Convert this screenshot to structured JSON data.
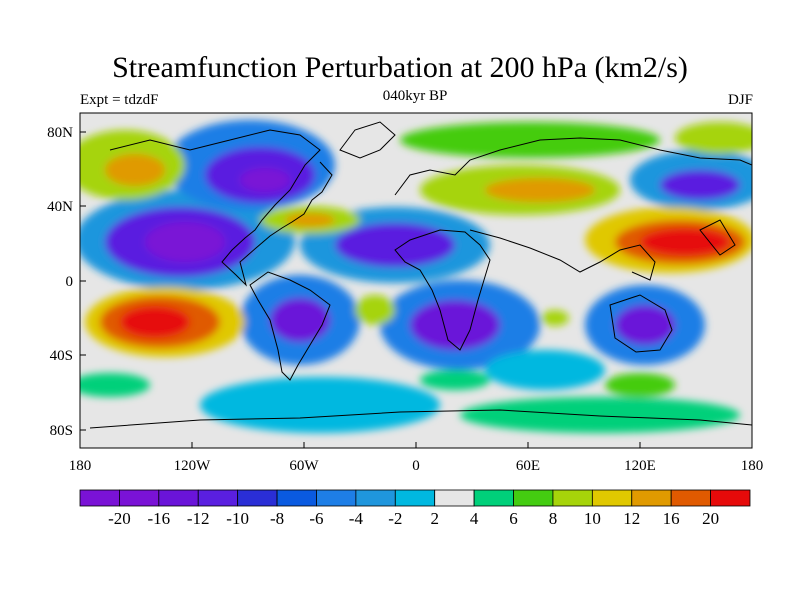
{
  "title": "Streamfunction Perturbation at 200 hPa (km2/s)",
  "subtitle_left": "Expt = tdzdF",
  "subtitle_center": "040kyr BP",
  "subtitle_right": "DJF",
  "lat_labels": [
    "80N",
    "40N",
    "0",
    "40S",
    "80S"
  ],
  "lon_labels": [
    "180",
    "120W",
    "60W",
    "0",
    "60E",
    "120E",
    "180"
  ],
  "colorbar": {
    "labels": [
      "-20",
      "-16",
      "-12",
      "-10",
      "-8",
      "-6",
      "-4",
      "-2",
      "2",
      "4",
      "6",
      "8",
      "10",
      "12",
      "16",
      "20"
    ],
    "colors": [
      "#7a12d6",
      "#6a14d9",
      "#5a1fe0",
      "#2a2ed6",
      "#0a5ae0",
      "#1e7ee6",
      "#1f96dd",
      "#00b8e0",
      "#e6e6e6",
      "#00d07a",
      "#44cc11",
      "#a6d40a",
      "#e0c800",
      "#e09a00",
      "#e05a00",
      "#e60a0a"
    ]
  },
  "colors": {
    "ocean_neutral": "#e6e6e6",
    "coastline": "#000000"
  }
}
